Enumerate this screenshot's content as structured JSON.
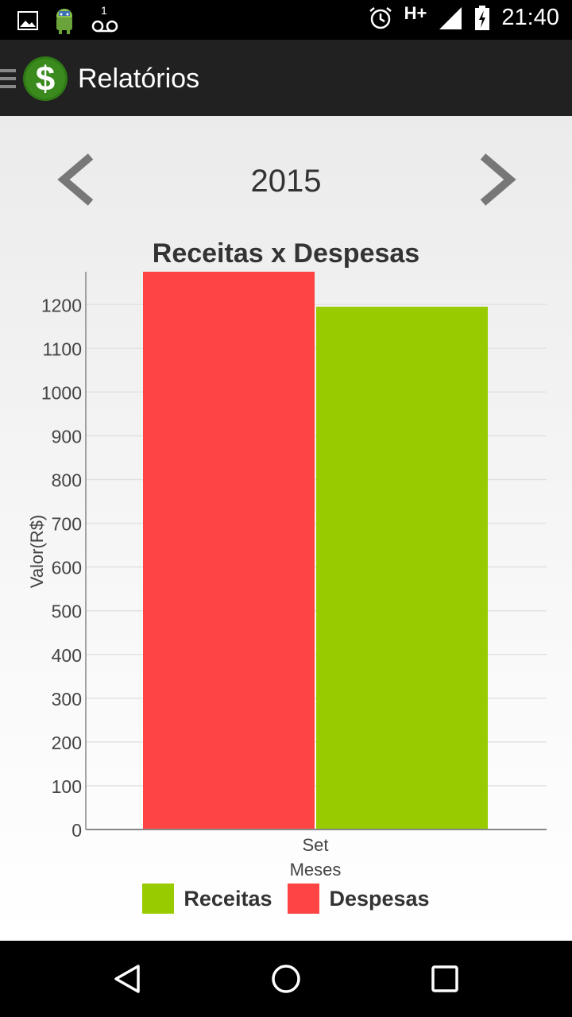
{
  "status_bar": {
    "time": "21:40",
    "network": "H+",
    "voicemail_count": "1",
    "icons": [
      "image-icon",
      "android-icon",
      "voicemail-icon",
      "alarm-icon",
      "signal-icon",
      "battery-icon"
    ]
  },
  "app_bar": {
    "title": "Relatórios",
    "logo_icon": "dollar-icon"
  },
  "year_nav": {
    "year": "2015"
  },
  "chart_data": {
    "type": "bar",
    "title": "Receitas x Despesas",
    "xlabel": "Meses",
    "ylabel": "Valor(R$)",
    "categories": [
      "Set"
    ],
    "ylim": [
      0,
      1275
    ],
    "yticks": [
      "0",
      "100",
      "200",
      "300",
      "400",
      "500",
      "600",
      "700",
      "800",
      "900",
      "1000",
      "1100",
      "1200"
    ],
    "grid": true,
    "series": [
      {
        "name": "Despesas",
        "values": [
          1275
        ],
        "color": "#ff4444"
      },
      {
        "name": "Receitas",
        "values": [
          1195
        ],
        "color": "#99cc00"
      }
    ],
    "legend": {
      "placement": "bottom",
      "order": [
        "Receitas",
        "Despesas"
      ]
    }
  },
  "colors": {
    "app_bar": "#212121",
    "receitas": "#99cc00",
    "despesas": "#ff4444",
    "logo_green": "#3a8a1e"
  }
}
